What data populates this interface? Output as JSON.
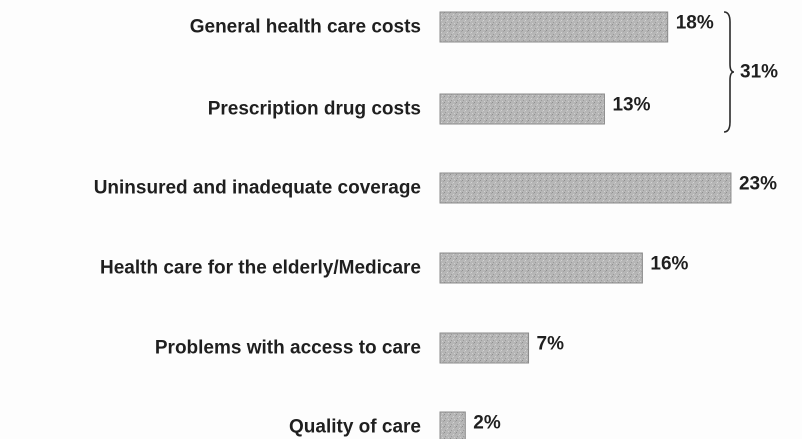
{
  "chart_data": {
    "type": "bar",
    "orientation": "horizontal",
    "categories": [
      "General health care costs",
      "Prescription drug costs",
      "Uninsured and inadequate coverage",
      "Health care for the elderly/Medicare",
      "Problems with access to care",
      "Quality of care"
    ],
    "values": [
      18,
      13,
      23,
      16,
      7,
      2
    ],
    "value_labels": [
      "18%",
      "13%",
      "23%",
      "16%",
      "7%",
      "2%"
    ],
    "annotations": [
      {
        "text": "31%",
        "groups": [
          "General health care costs",
          "Prescription drug costs"
        ]
      }
    ],
    "title": "",
    "xlabel": "",
    "ylabel": "",
    "grid": false,
    "legend": "none",
    "bar_color": "#b4b4b4",
    "label_color": "#1f1f1f"
  }
}
